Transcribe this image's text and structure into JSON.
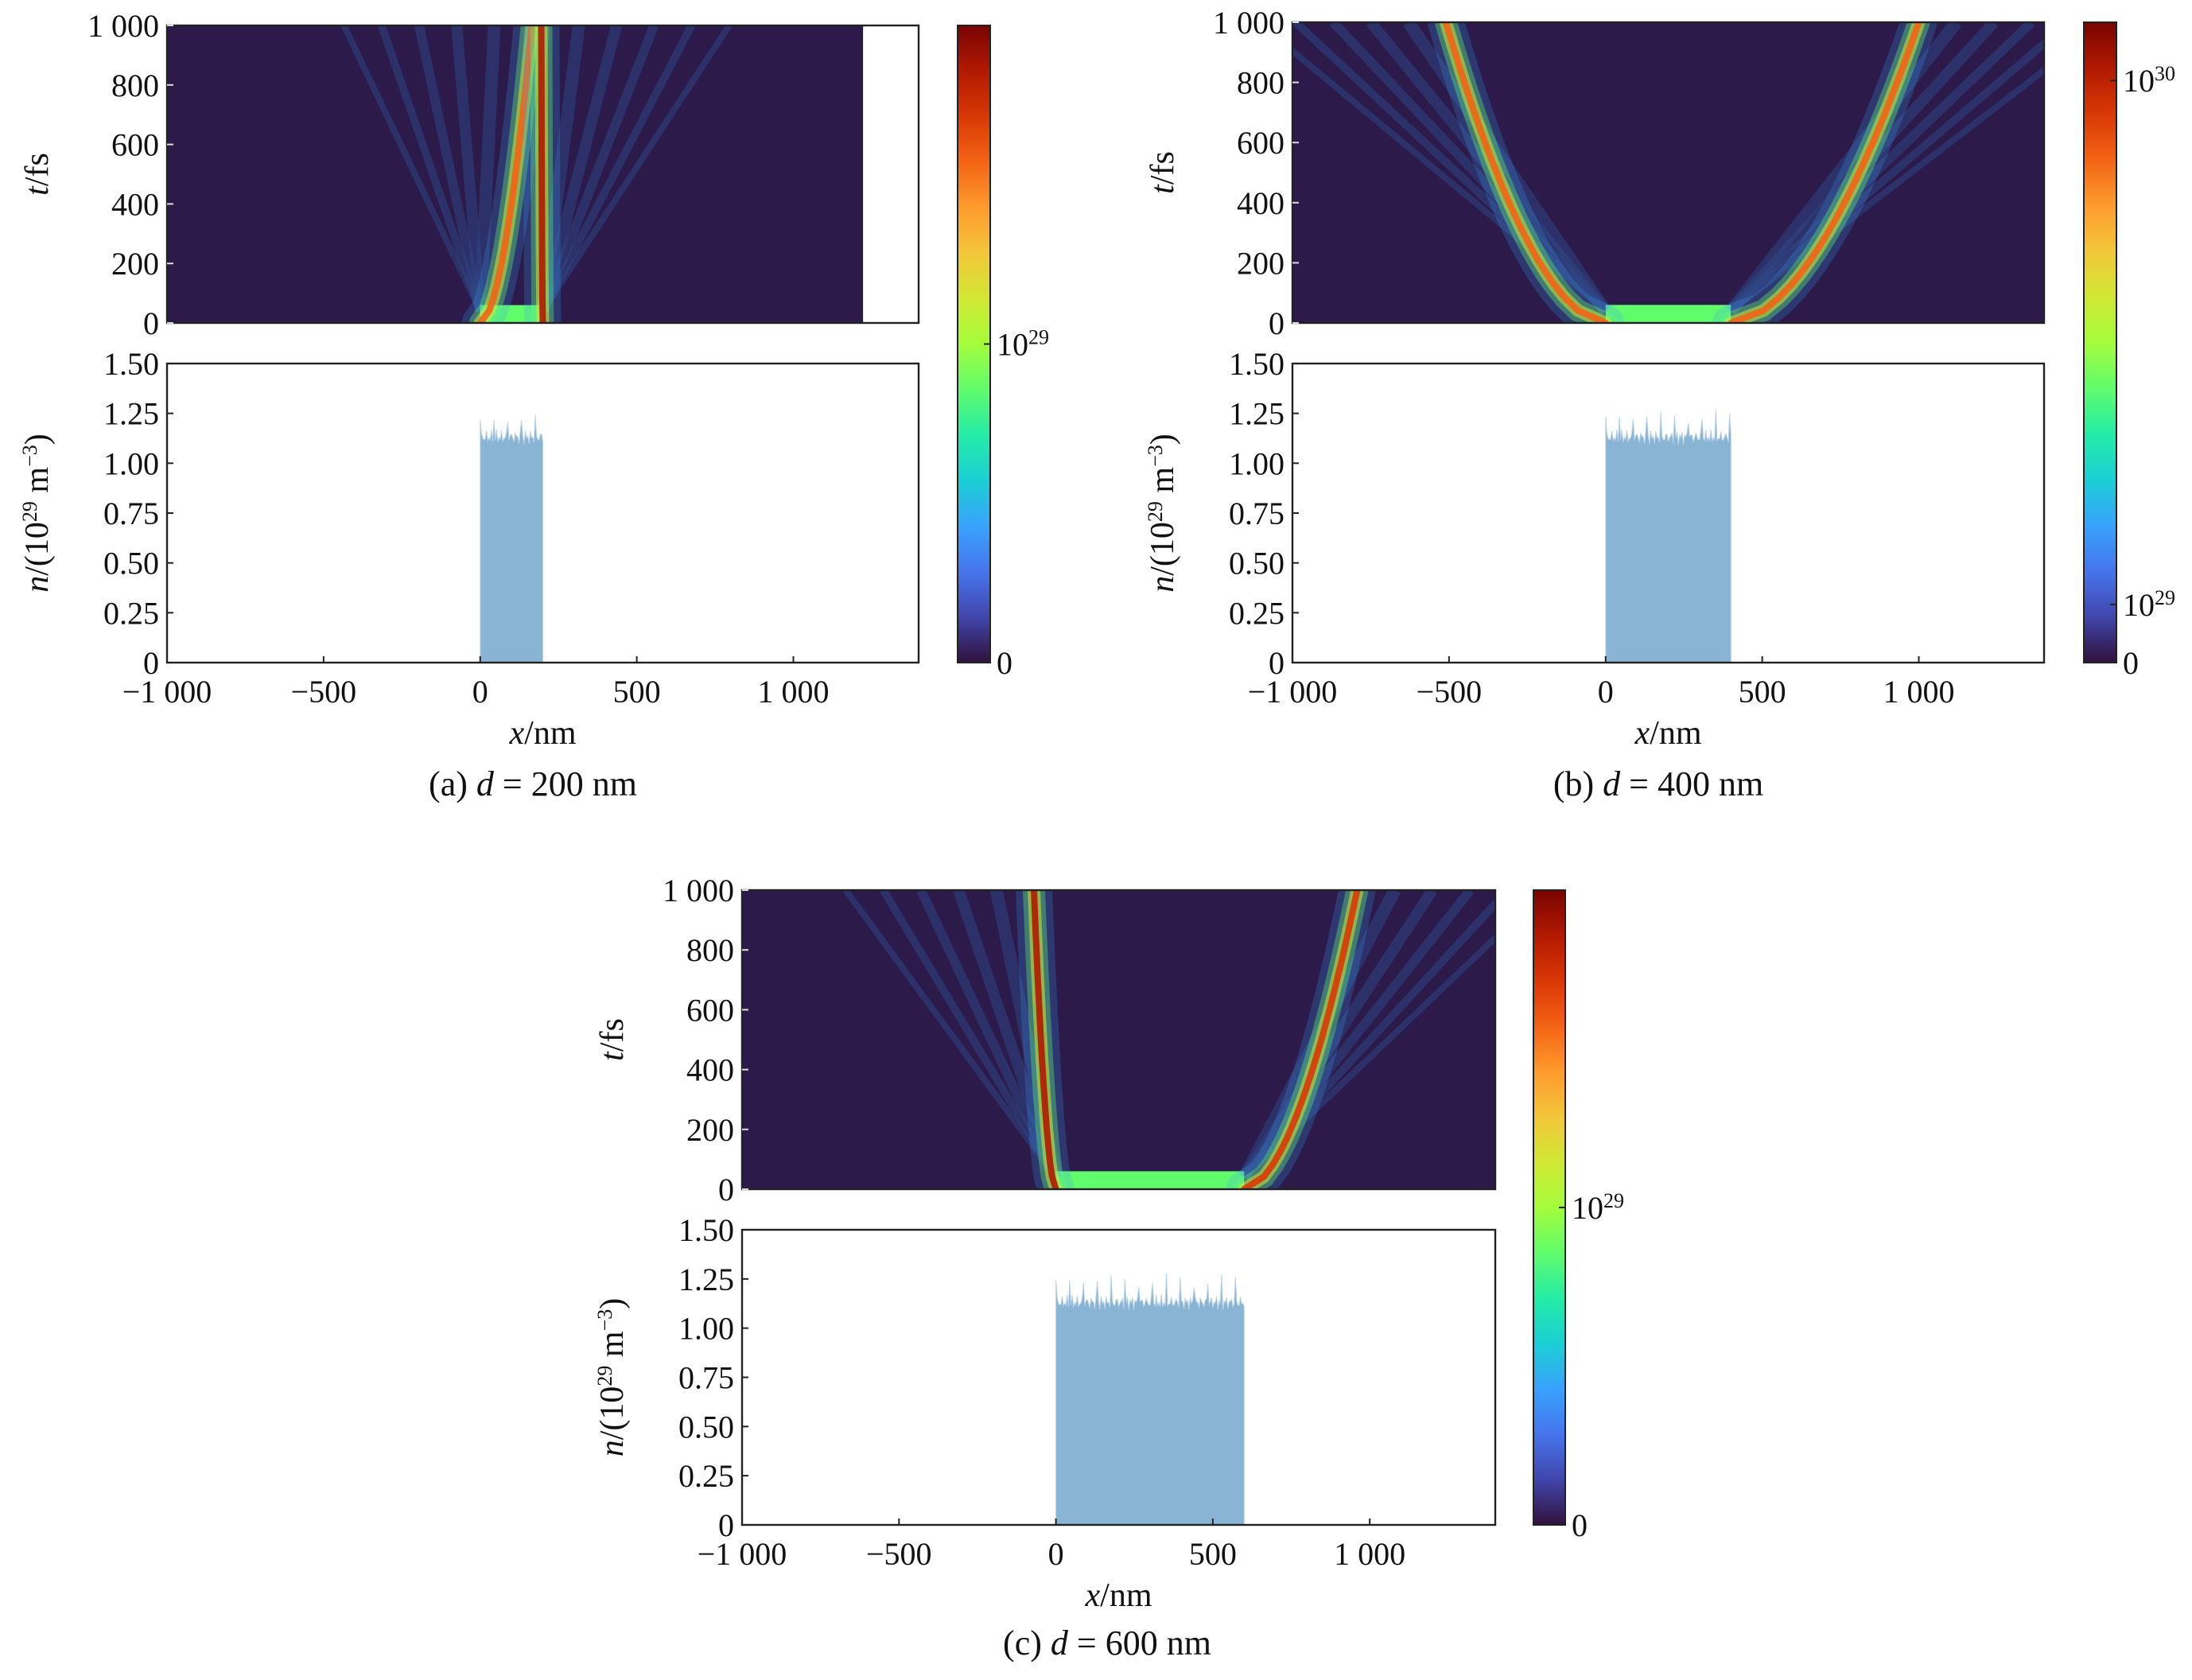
{
  "colors": {
    "map_background": "#2b1a4a",
    "profile_fill": "#89b4d4",
    "colormap": [
      "#30123b",
      "#4145ab",
      "#4675ed",
      "#39a2fc",
      "#1bcfd4",
      "#24eca6",
      "#61fc6c",
      "#a4fc3b",
      "#d1e834",
      "#f3c63a",
      "#fe9b2d",
      "#f36315",
      "#d93806",
      "#b11901",
      "#7a0402"
    ]
  },
  "chart_data": [
    {
      "type": "heatmap",
      "id": "a",
      "caption": {
        "label": "(a) ",
        "var": "d",
        "rest": " = 200 nm"
      },
      "thickness_nm": 200,
      "heatmap": {
        "ylabel": {
          "var": "t",
          "unit": "/fs"
        },
        "xlim": [
          -1000,
          1400
        ],
        "ylim": [
          0,
          1000
        ],
        "yticks": [
          0,
          200,
          400,
          600,
          800,
          1000
        ],
        "ytick_labels": [
          "0",
          "200",
          "400",
          "600",
          "800",
          "1 000"
        ],
        "blank_region_x_from": 1220,
        "plasma_edges": [
          {
            "x_t0": 0,
            "x_t1000": 165,
            "peak": 0.78
          },
          {
            "x_t0": 200,
            "x_t1000": 195,
            "peak": 0.92
          }
        ]
      },
      "profile": {
        "ylabel": {
          "var": "n",
          "unit_pre": "/(10",
          "exp": "29",
          "unit_post": " m",
          "exp2": "−3",
          "close": ")"
        },
        "xlabel": {
          "var": "x",
          "unit": "/nm"
        },
        "xlim": [
          -1000,
          1400
        ],
        "ylim": [
          0,
          1.5
        ],
        "yticks": [
          0,
          0.25,
          0.5,
          0.75,
          1.0,
          1.25,
          1.5
        ],
        "ytick_labels": [
          "0",
          "0.25",
          "0.50",
          "0.75",
          "1.00",
          "1.25",
          "1.50"
        ],
        "xticks": [
          -1000,
          -500,
          0,
          500,
          1000
        ],
        "xtick_labels": [
          "−1 000",
          "−500",
          "0",
          "500",
          "1 000"
        ],
        "x_range": [
          0,
          200
        ],
        "mean_density": 1.13,
        "max_density": 1.24
      },
      "colorbar": {
        "range": [
          0,
          2.0
        ],
        "tick_labels": [
          {
            "value": 0,
            "base": "0",
            "exp": ""
          },
          {
            "value": 1.0,
            "base": "10",
            "exp": "29"
          }
        ]
      }
    },
    {
      "type": "heatmap",
      "id": "b",
      "caption": {
        "label": "(b) ",
        "var": "d",
        "rest": " = 400 nm"
      },
      "thickness_nm": 400,
      "heatmap": {
        "ylabel": {
          "var": "t",
          "unit": "/fs"
        },
        "xlim": [
          -1000,
          1400
        ],
        "ylim": [
          0,
          1000
        ],
        "yticks": [
          0,
          200,
          400,
          600,
          800,
          1000
        ],
        "ytick_labels": [
          "0",
          "200",
          "400",
          "600",
          "800",
          "1 000"
        ],
        "plasma_edges": [
          {
            "x_t0": 0,
            "x_t1000": -510,
            "peak": 0.75
          },
          {
            "x_t0": 400,
            "x_t1000": 1000,
            "peak": 0.75
          }
        ]
      },
      "profile": {
        "ylabel": {
          "var": "n",
          "unit_pre": "/(10",
          "exp": "29",
          "unit_post": " m",
          "exp2": "−3",
          "close": ")"
        },
        "xlabel": {
          "var": "x",
          "unit": "/nm"
        },
        "xlim": [
          -1000,
          1400
        ],
        "ylim": [
          0,
          1.5
        ],
        "yticks": [
          0,
          0.25,
          0.5,
          0.75,
          1.0,
          1.25,
          1.5
        ],
        "ytick_labels": [
          "0",
          "0.25",
          "0.50",
          "0.75",
          "1.00",
          "1.25",
          "1.50"
        ],
        "xticks": [
          -1000,
          -500,
          0,
          500,
          1000
        ],
        "xtick_labels": [
          "−1 000",
          "−500",
          "0",
          "500",
          "1 000"
        ],
        "x_range": [
          0,
          400
        ],
        "mean_density": 1.13,
        "max_density": 1.26
      },
      "colorbar": {
        "range": [
          0,
          11.0
        ],
        "tick_labels": [
          {
            "value": 0,
            "base": "0",
            "exp": ""
          },
          {
            "value": 1.0,
            "base": "10",
            "exp": "29"
          },
          {
            "value": 10.0,
            "base": "10",
            "exp": "30"
          }
        ]
      }
    },
    {
      "type": "heatmap",
      "id": "c",
      "caption": {
        "label": "(c) ",
        "var": "d",
        "rest": " = 600 nm"
      },
      "thickness_nm": 600,
      "heatmap": {
        "ylabel": {
          "var": "t",
          "unit": "/fs"
        },
        "xlim": [
          -1000,
          1400
        ],
        "ylim": [
          0,
          1000
        ],
        "yticks": [
          0,
          200,
          400,
          600,
          800,
          1000
        ],
        "ytick_labels": [
          "0",
          "200",
          "400",
          "600",
          "800",
          "1 000"
        ],
        "plasma_edges": [
          {
            "x_t0": 0,
            "x_t1000": -70,
            "peak": 0.95
          },
          {
            "x_t0": 600,
            "x_t1000": 960,
            "peak": 0.85
          }
        ]
      },
      "profile": {
        "ylabel": {
          "var": "n",
          "unit_pre": "/(10",
          "exp": "29",
          "unit_post": " m",
          "exp2": "−3",
          "close": ")"
        },
        "xlabel": {
          "var": "x",
          "unit": "/nm"
        },
        "xlim": [
          -1000,
          1400
        ],
        "ylim": [
          0,
          1.5
        ],
        "yticks": [
          0,
          0.25,
          0.5,
          0.75,
          1.0,
          1.25,
          1.5
        ],
        "ytick_labels": [
          "0",
          "0.25",
          "0.50",
          "0.75",
          "1.00",
          "1.25",
          "1.50"
        ],
        "xticks": [
          -1000,
          -500,
          0,
          500,
          1000
        ],
        "xtick_labels": [
          "−1 000",
          "−500",
          "0",
          "500",
          "1 000"
        ],
        "x_range": [
          0,
          600
        ],
        "mean_density": 1.13,
        "max_density": 1.27
      },
      "colorbar": {
        "range": [
          0,
          2.0
        ],
        "tick_labels": [
          {
            "value": 0,
            "base": "0",
            "exp": ""
          },
          {
            "value": 1.0,
            "base": "10",
            "exp": "29"
          }
        ]
      }
    }
  ]
}
